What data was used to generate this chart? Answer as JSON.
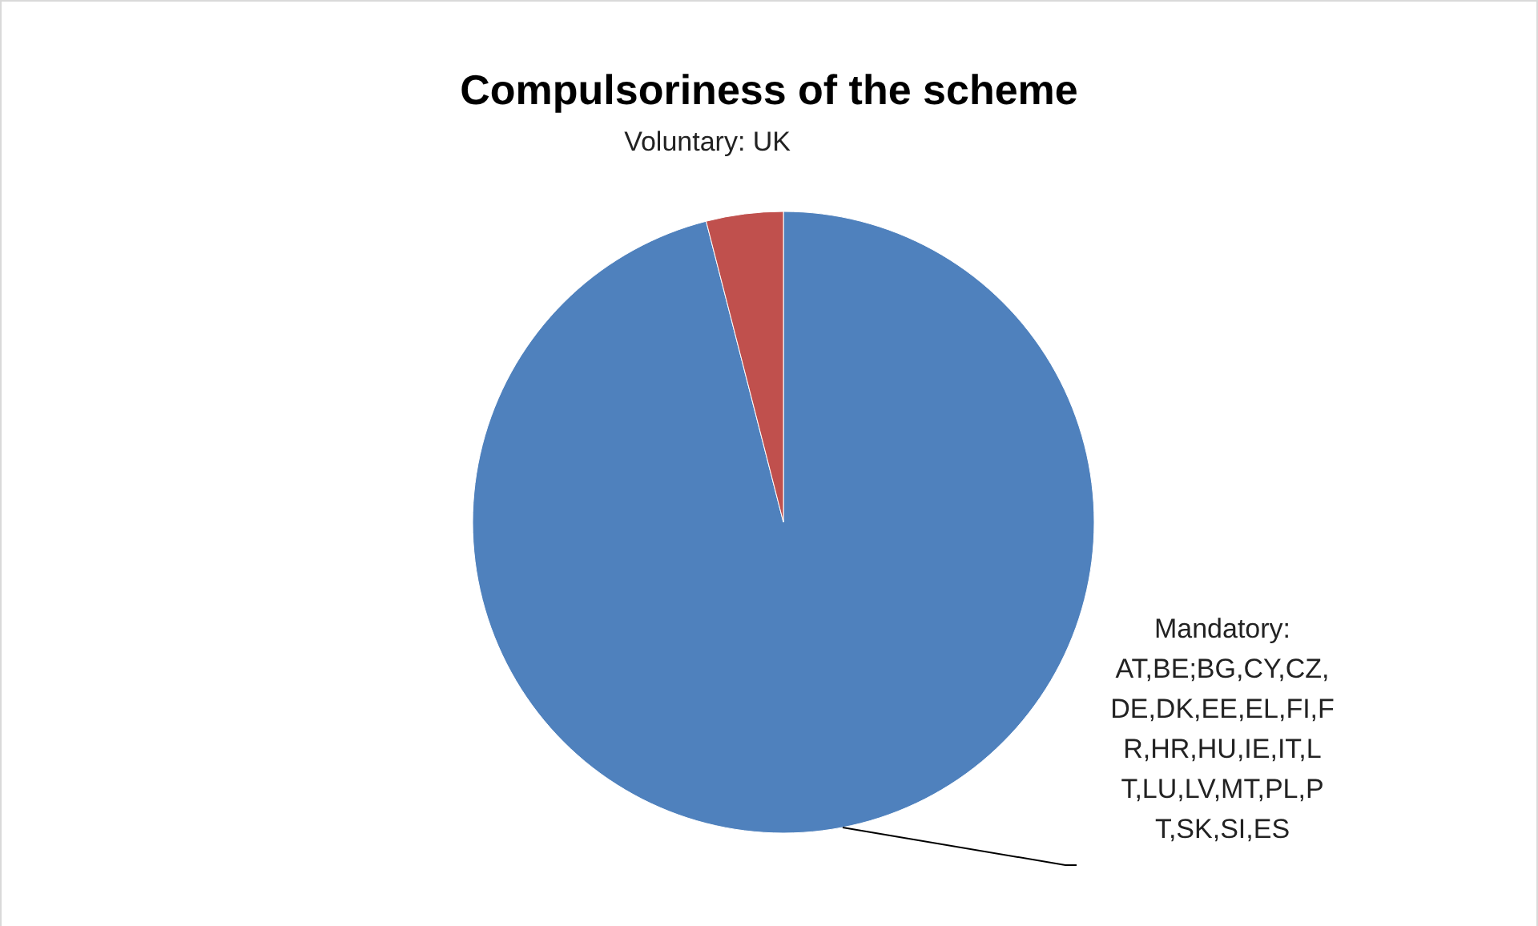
{
  "chart_data": {
    "type": "pie",
    "title": "Compulsoriness of the scheme",
    "categories": [
      "Mandatory: AT,BE;BG,CY,CZ,DE,DK,EE,EL,FI,FR,HR,HU,IE,IT,LT,LU,LV,MT,PL,PT,SK,SI,ES",
      "Voluntary: UK"
    ],
    "values": [
      96,
      4
    ],
    "colors": [
      "#4f81bd",
      "#c0504d"
    ]
  }
}
